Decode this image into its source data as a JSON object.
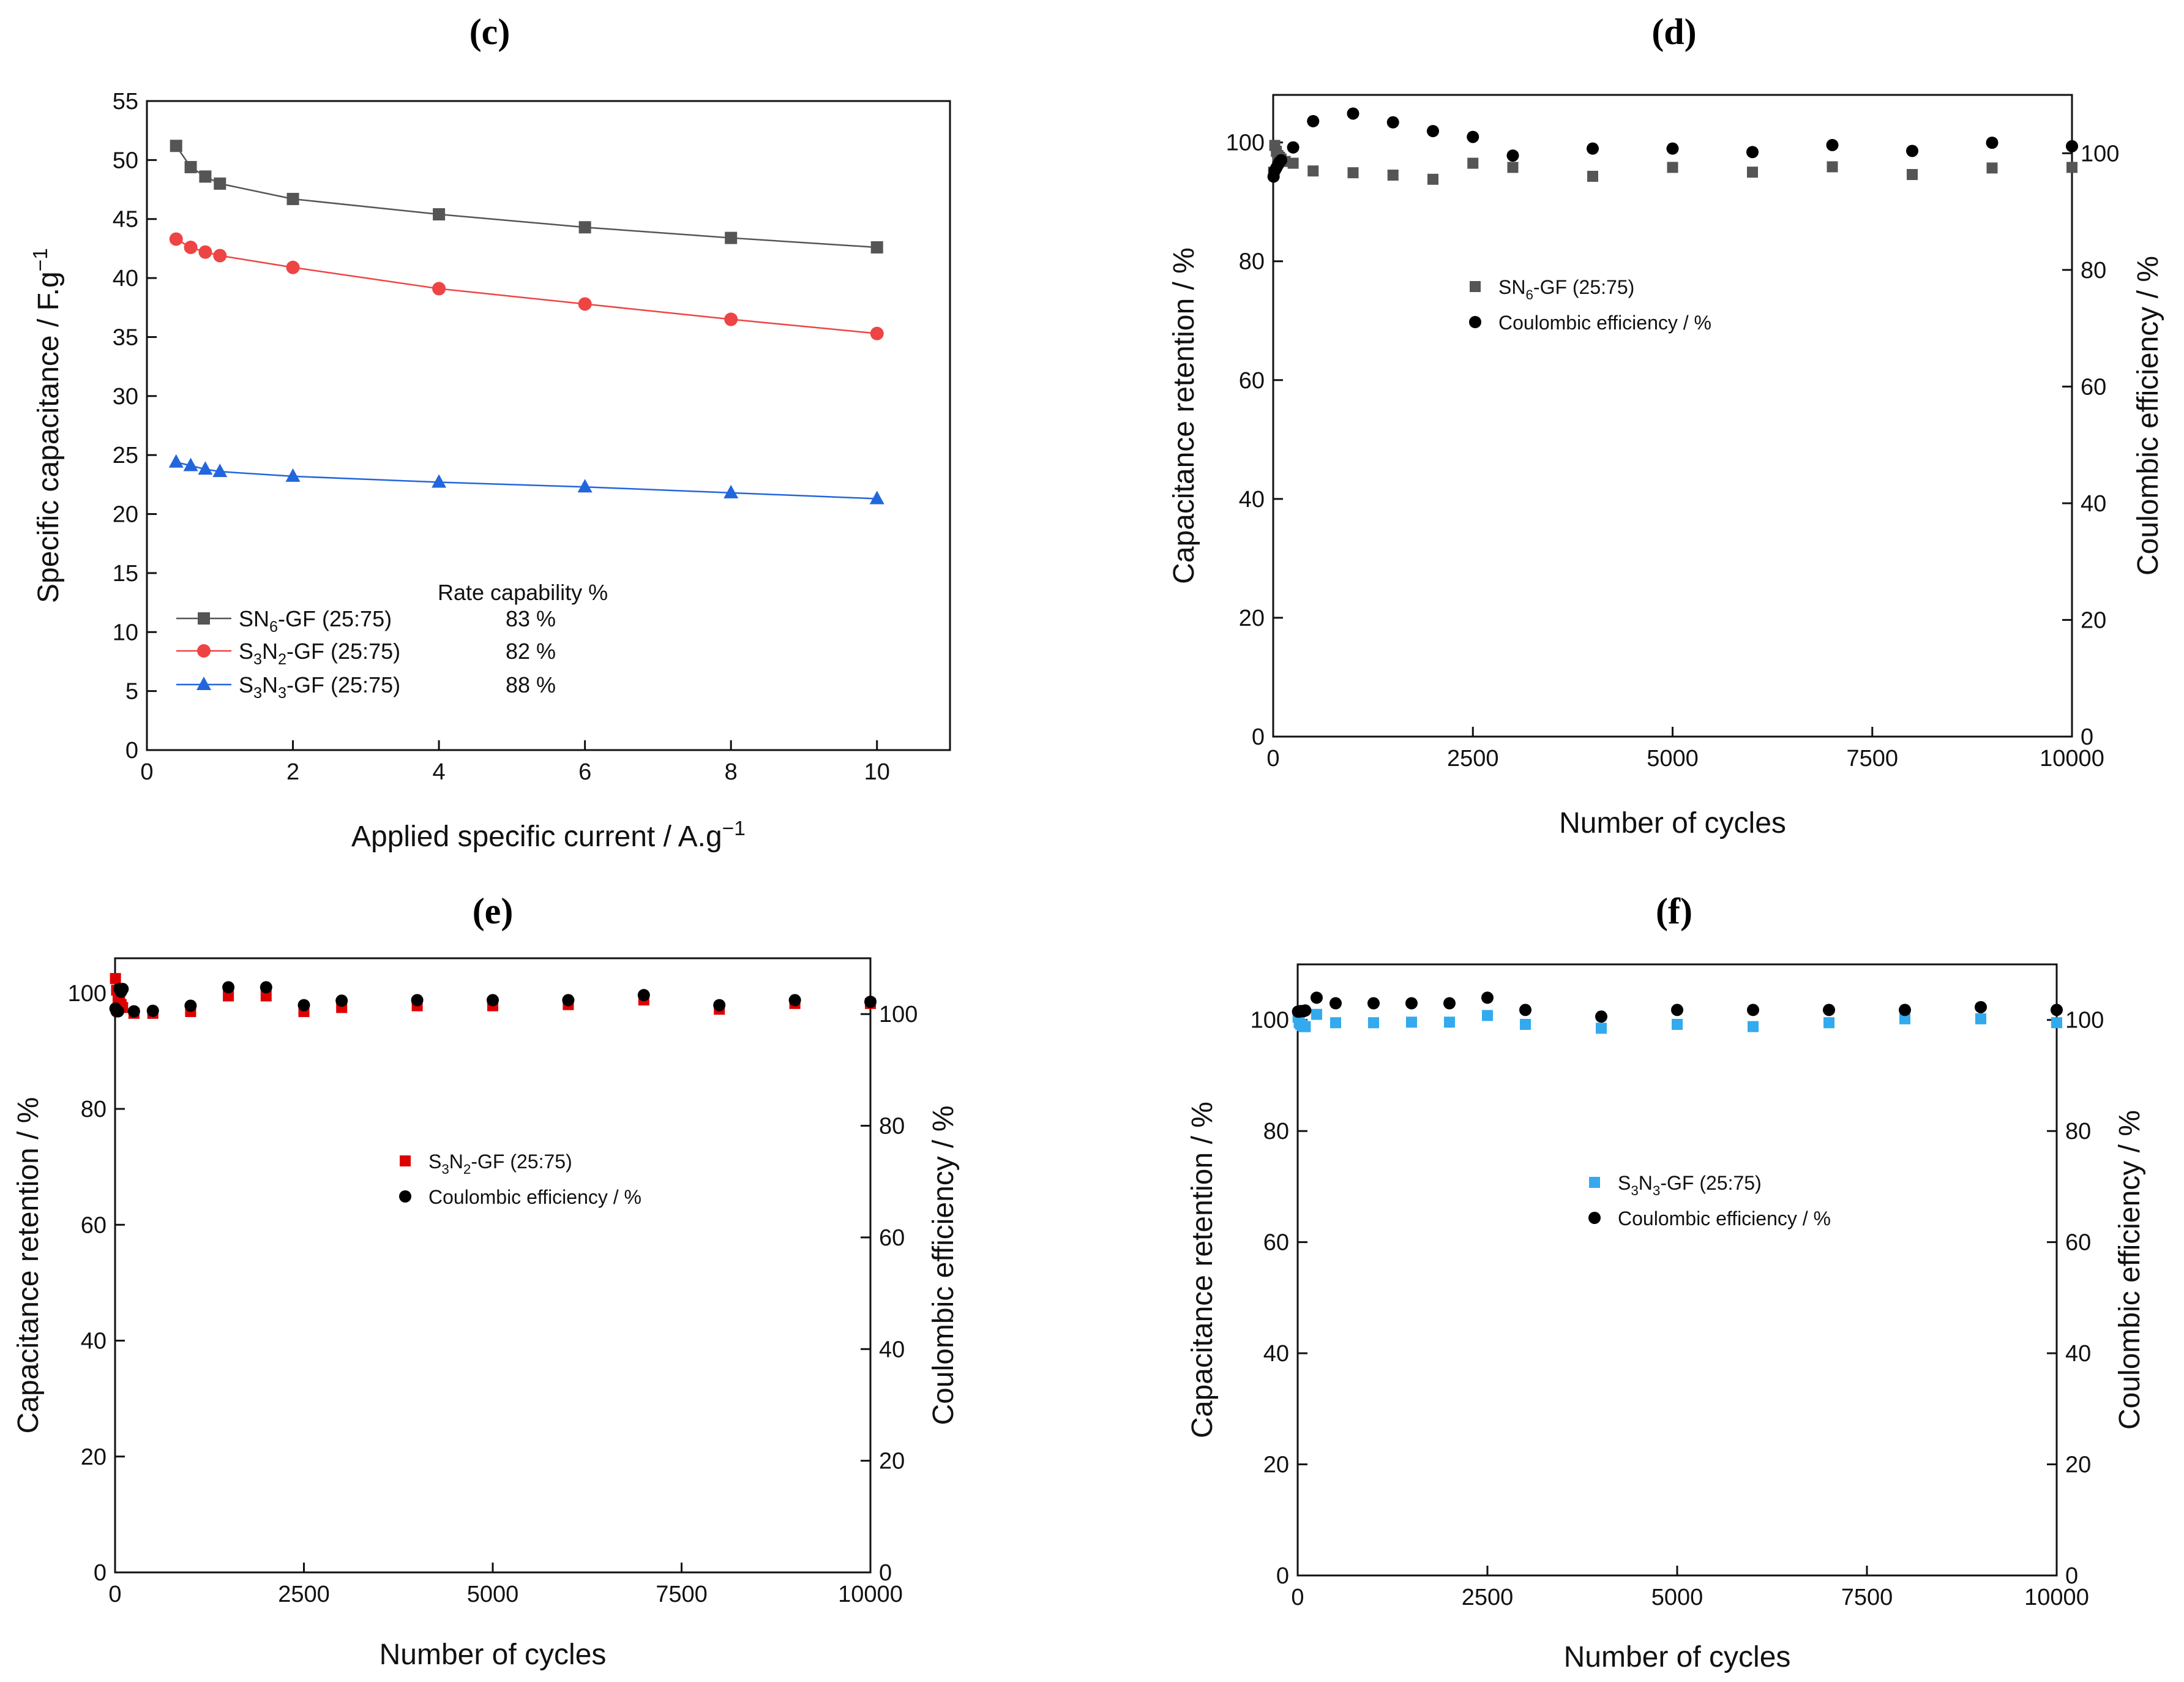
{
  "chart_data": [
    {
      "id": "c",
      "type": "line",
      "panel_label": "(c)",
      "xlabel": "Applied specific current / A.g",
      "xlabel_sup": "−1",
      "ylabel": "Specific capacitance / F.g",
      "ylabel_sup": "−1",
      "xlim": [
        0,
        11
      ],
      "ylim": [
        0,
        55
      ],
      "xticks": [
        0,
        2,
        4,
        6,
        8,
        10
      ],
      "yticks": [
        0,
        5,
        10,
        15,
        20,
        25,
        30,
        35,
        40,
        45,
        50,
        55
      ],
      "x": [
        0.4,
        0.6,
        0.8,
        1,
        2,
        4,
        6,
        8,
        10
      ],
      "series": [
        {
          "name": "SN6-GF (25:75)",
          "legend_main": "SN",
          "legend_sub1": "6",
          "legend_rest": "-GF (25:75)",
          "rate_capability": "83 %",
          "color": "#555555",
          "marker": "square",
          "values": [
            51.2,
            49.4,
            48.6,
            48.0,
            46.7,
            45.4,
            44.3,
            43.4,
            42.6
          ]
        },
        {
          "name": "S3N2-GF (25:75)",
          "legend_main": "S",
          "legend_sub1": "3",
          "legend_mid": "N",
          "legend_sub2": "2",
          "legend_rest": "-GF (25:75)",
          "rate_capability": "82 %",
          "color": "#ee4444",
          "marker": "circle",
          "values": [
            43.3,
            42.6,
            42.2,
            41.9,
            40.9,
            39.1,
            37.8,
            36.5,
            35.3
          ]
        },
        {
          "name": "S3N3-GF (25:75)",
          "legend_main": "S",
          "legend_sub1": "3",
          "legend_mid": "N",
          "legend_sub2": "3",
          "legend_rest": "-GF (25:75)",
          "rate_capability": "88 %",
          "color": "#2266dd",
          "marker": "triangle",
          "values": [
            24.4,
            24.1,
            23.8,
            23.6,
            23.2,
            22.7,
            22.3,
            21.8,
            21.3
          ]
        }
      ],
      "legend_header": "Rate capability %"
    },
    {
      "id": "d",
      "type": "scatter",
      "panel_label": "(d)",
      "xlabel": "Number of cycles",
      "ylabel": "Capacitance retention / %",
      "ylabel_right": "Coulombic efficiency / %",
      "xlim": [
        0,
        10000
      ],
      "ylim": [
        0,
        108
      ],
      "ylim_right": [
        0,
        110
      ],
      "xticks": [
        0,
        2500,
        5000,
        7500,
        10000
      ],
      "yticks": [
        0,
        20,
        40,
        60,
        80,
        100
      ],
      "yticks_right": [
        0,
        20,
        40,
        60,
        80,
        100
      ],
      "retention": {
        "name": "SN6-GF (25:75)",
        "legend_main": "SN",
        "legend_sub1": "6",
        "legend_rest": "-GF (25:75)",
        "color": "#555555",
        "x": [
          5,
          20,
          40,
          60,
          80,
          100,
          150,
          250,
          500,
          1000,
          1500,
          2000,
          2500,
          3000,
          4000,
          5000,
          6000,
          7000,
          8000,
          9000,
          10000
        ],
        "y": [
          95,
          99.5,
          98.5,
          97.8,
          97.5,
          97.2,
          96.8,
          96.5,
          95.2,
          94.9,
          94.5,
          93.8,
          96.5,
          95.8,
          94.3,
          95.8,
          95.0,
          95.9,
          94.6,
          95.7,
          95.8
        ]
      },
      "efficiency": {
        "name": "Coulombic efficiency / %",
        "color": "#000000",
        "x": [
          5,
          20,
          40,
          60,
          80,
          100,
          250,
          500,
          1000,
          1500,
          2000,
          2500,
          3000,
          4000,
          5000,
          6000,
          7000,
          8000,
          9000,
          10000
        ],
        "y": [
          96,
          97,
          97.5,
          98,
          98.5,
          98.8,
          101,
          105.5,
          106.8,
          105.3,
          103.8,
          102.8,
          99.6,
          100.8,
          100.8,
          100.2,
          101.4,
          100.4,
          101.8,
          101.2
        ]
      }
    },
    {
      "id": "e",
      "type": "scatter",
      "panel_label": "(e)",
      "xlabel": "Number of cycles",
      "ylabel": "Capacitance retention / %",
      "ylabel_right": "Coulombic efficiency / %",
      "xlim": [
        0,
        10000
      ],
      "ylim": [
        0,
        106
      ],
      "ylim_right": [
        0,
        110
      ],
      "xticks": [
        0,
        2500,
        5000,
        7500,
        10000
      ],
      "yticks": [
        0,
        20,
        40,
        60,
        80,
        100
      ],
      "yticks_right": [
        0,
        20,
        40,
        60,
        80,
        100
      ],
      "retention": {
        "name": "S3N2-GF (25:75)",
        "legend_main": "S",
        "legend_sub1": "3",
        "legend_mid": "N",
        "legend_sub2": "2",
        "legend_rest": "-GF (25:75)",
        "color": "#dd0000",
        "x": [
          5,
          20,
          40,
          60,
          80,
          100,
          250,
          500,
          1000,
          1500,
          2000,
          2500,
          3000,
          4000,
          5000,
          6000,
          7000,
          8000,
          9000,
          10000
        ],
        "y": [
          102.5,
          100.5,
          99.0,
          98.5,
          98.0,
          97.5,
          96.5,
          96.5,
          96.8,
          99.5,
          99.5,
          96.8,
          97.5,
          97.8,
          97.8,
          98.0,
          98.8,
          97.2,
          98.2,
          98.2
        ]
      },
      "efficiency": {
        "name": "Coulombic efficiency / %",
        "color": "#000000",
        "x": [
          5,
          20,
          40,
          60,
          80,
          100,
          250,
          500,
          1000,
          1500,
          2000,
          2500,
          3000,
          4000,
          5000,
          6000,
          7000,
          8000,
          9000,
          10000
        ],
        "y": [
          101,
          100.5,
          100.5,
          104.5,
          104,
          104.5,
          100.5,
          100.6,
          101.5,
          104.8,
          104.8,
          101.6,
          102.4,
          102.5,
          102.5,
          102.5,
          103.4,
          101.6,
          102.5,
          102.2
        ]
      }
    },
    {
      "id": "f",
      "type": "scatter",
      "panel_label": "(f)",
      "xlabel": "Number of cycles",
      "ylabel": "Capacitance retention / %",
      "ylabel_right": "Coulombic efficiency / %",
      "xlim": [
        0,
        10000
      ],
      "ylim": [
        0,
        110
      ],
      "ylim_right": [
        0,
        110
      ],
      "xticks": [
        0,
        2500,
        5000,
        7500,
        10000
      ],
      "yticks": [
        0,
        20,
        40,
        60,
        80,
        100
      ],
      "yticks_right": [
        0,
        20,
        40,
        60,
        80,
        100
      ],
      "retention": {
        "name": "S3N3-GF (25:75)",
        "legend_main": "S",
        "legend_sub1": "3",
        "legend_mid": "N",
        "legend_sub2": "3",
        "legend_rest": "-GF (25:75)",
        "color": "#33aaee",
        "x": [
          5,
          20,
          40,
          60,
          80,
          100,
          250,
          500,
          1000,
          1500,
          2000,
          2500,
          3000,
          4000,
          5000,
          6000,
          7000,
          8000,
          9000,
          10000
        ],
        "y": [
          100.5,
          99.5,
          99.2,
          99.0,
          98.8,
          98.8,
          101.0,
          99.5,
          99.5,
          99.6,
          99.6,
          100.8,
          99.2,
          98.5,
          99.2,
          98.8,
          99.5,
          100.2,
          100.2,
          99.5
        ]
      },
      "efficiency": {
        "name": "Coulombic efficiency / %",
        "color": "#000000",
        "x": [
          5,
          20,
          40,
          60,
          80,
          100,
          250,
          500,
          1000,
          1500,
          2000,
          2500,
          3000,
          4000,
          5000,
          6000,
          7000,
          8000,
          9000,
          10000
        ],
        "y": [
          101.5,
          101.5,
          101.6,
          101.6,
          101.6,
          101.7,
          104.0,
          103.0,
          103.0,
          103.0,
          103.0,
          104.0,
          101.8,
          100.6,
          101.8,
          101.8,
          101.8,
          101.8,
          102.3,
          101.8
        ]
      }
    }
  ]
}
